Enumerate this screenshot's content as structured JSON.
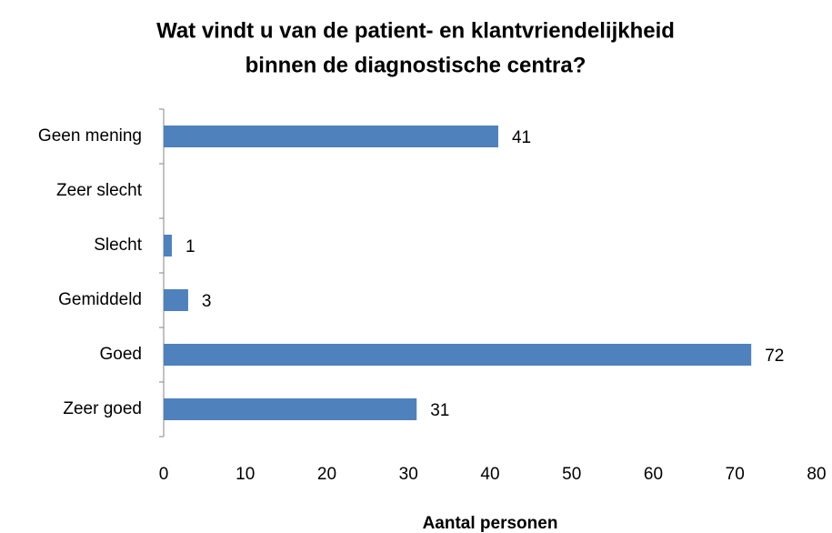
{
  "chart_data": {
    "type": "bar",
    "orientation": "horizontal",
    "title": [
      "Wat vindt u van de patient- en klantvriendelijkheid",
      "binnen de diagnostische centra?"
    ],
    "x_label": "Aantal personen",
    "categories": [
      "Geen mening",
      "Zeer slecht",
      "Slecht",
      "Gemiddeld",
      "Goed",
      "Zeer goed"
    ],
    "values": [
      41,
      null,
      1,
      3,
      72,
      31
    ],
    "color": "#4f81bd",
    "xlim": [
      0,
      80
    ],
    "xticks": [
      0,
      10,
      20,
      30,
      40,
      50,
      60,
      70,
      80
    ],
    "grid": false
  }
}
